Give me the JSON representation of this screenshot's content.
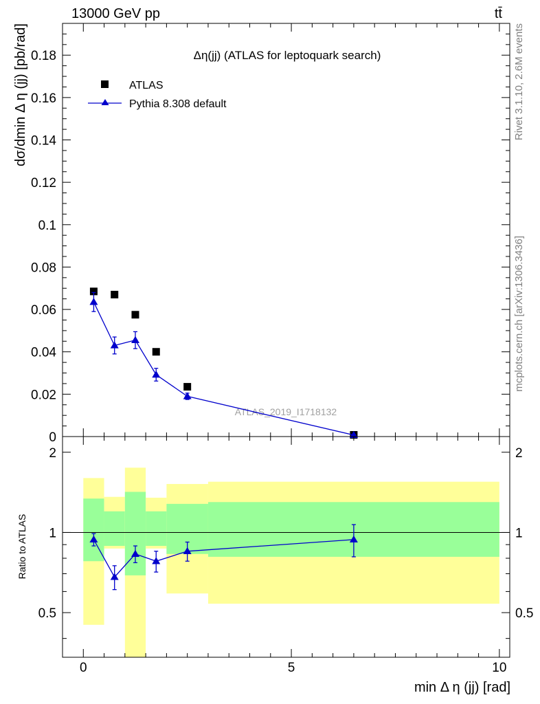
{
  "header": {
    "energy_label": "13000 GeV pp",
    "process_label": "tt̄",
    "right_top": "Rivet 3.1.10,  2.6M events",
    "right_bottom": "mcplots.cern.ch [arXiv:1306.3436]",
    "watermark": "ATLAS_2019_I1718132"
  },
  "chart_data": [
    {
      "type": "scatter",
      "title": "Δη(jj) (ATLAS for leptoquark search)",
      "ylabel": "dσ/dmin Δ η (jj) [pb/rad]",
      "xlim": [
        -0.5,
        10.25
      ],
      "ylim": [
        0,
        0.195
      ],
      "yticks": [
        0,
        0.02,
        0.04,
        0.06,
        0.08,
        0.1,
        0.12,
        0.14,
        0.16,
        0.18
      ],
      "ytick_labels": [
        "0",
        "0.02",
        "0.04",
        "0.06",
        "0.08",
        "0.1",
        "0.12",
        "0.14",
        "0.16",
        "0.18"
      ],
      "legend_position": "top-left",
      "series": [
        {
          "name": "ATLAS",
          "marker": "square",
          "color": "#000000",
          "x": [
            0.25,
            0.75,
            1.25,
            1.75,
            2.5,
            6.5
          ],
          "y": [
            0.0685,
            0.067,
            0.0575,
            0.04,
            0.0235,
            0.0008
          ]
        },
        {
          "name": "Pythia 8.308 default",
          "marker": "triangle",
          "color": "#0000cc",
          "x": [
            0.25,
            0.75,
            1.25,
            1.75,
            2.5,
            6.5
          ],
          "y": [
            0.0635,
            0.043,
            0.0455,
            0.0292,
            0.019,
            0.0007
          ],
          "err": [
            0.0045,
            0.004,
            0.004,
            0.003,
            0.0015,
            0.0002
          ]
        }
      ]
    },
    {
      "type": "scatter",
      "ylabel": "Ratio to ATLAS",
      "xlabel": "min Δ η (jj) [rad]",
      "xlim": [
        -0.5,
        10.25
      ],
      "ylim": [
        0.34,
        2.29
      ],
      "xticks": [
        0,
        5,
        10
      ],
      "xtick_labels": [
        "0",
        "5",
        "10"
      ],
      "yticks": [
        0.5,
        1,
        2
      ],
      "ytick_labels": [
        "0.5",
        "1",
        "2"
      ],
      "reference_line": 1,
      "bands": [
        {
          "x0": 0.0,
          "x1": 0.5,
          "yellow": [
            0.45,
            1.6
          ],
          "green": [
            0.78,
            1.34
          ]
        },
        {
          "x0": 0.5,
          "x1": 1.0,
          "yellow": [
            0.87,
            1.36
          ],
          "green": [
            0.89,
            1.2
          ]
        },
        {
          "x0": 1.0,
          "x1": 1.5,
          "yellow": [
            0.3,
            1.75
          ],
          "green": [
            0.69,
            1.42
          ]
        },
        {
          "x0": 1.5,
          "x1": 2.0,
          "yellow": [
            0.87,
            1.35
          ],
          "green": [
            0.89,
            1.2
          ]
        },
        {
          "x0": 2.0,
          "x1": 3.0,
          "yellow": [
            0.59,
            1.52
          ],
          "green": [
            0.83,
            1.28
          ]
        },
        {
          "x0": 3.0,
          "x1": 10.0,
          "yellow": [
            0.54,
            1.55
          ],
          "green": [
            0.81,
            1.3
          ]
        }
      ],
      "band_colors": {
        "yellow": "#ffff99",
        "green": "#99ff99"
      },
      "series": [
        {
          "name": "Pythia 8.308 default",
          "marker": "triangle",
          "color": "#0000cc",
          "x": [
            0.25,
            0.75,
            1.25,
            1.75,
            2.5,
            6.5
          ],
          "y": [
            0.94,
            0.68,
            0.83,
            0.78,
            0.85,
            0.94
          ],
          "err": [
            0.05,
            0.07,
            0.06,
            0.07,
            0.07,
            0.13
          ]
        }
      ]
    }
  ]
}
